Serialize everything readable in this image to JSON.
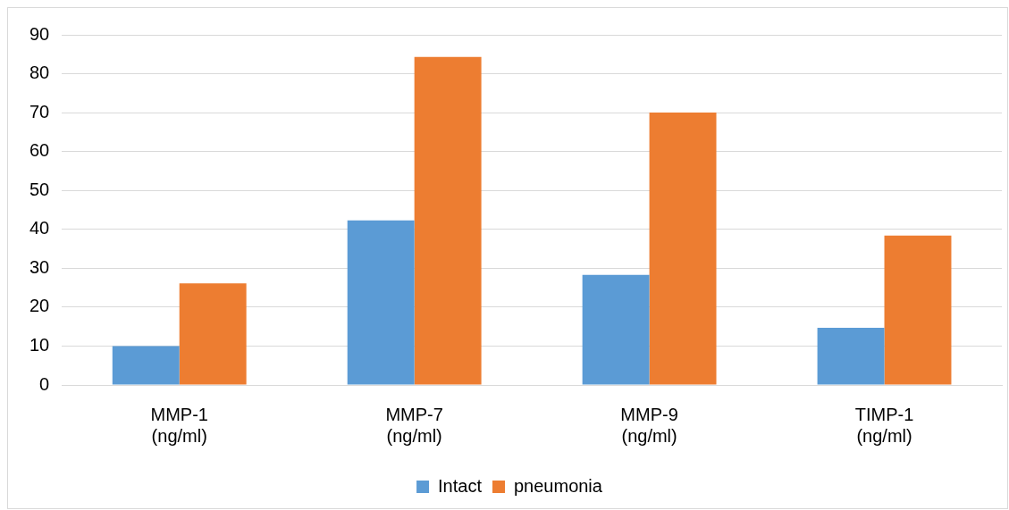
{
  "chart_data": {
    "type": "bar",
    "categories": [
      "MMP-1 (ng/ml)",
      "MMP-7 (ng/ml)",
      "MMP-9 (ng/ml)",
      "TIMP-1 (ng/ml)"
    ],
    "series": [
      {
        "name": "Intact",
        "color": "#5b9bd5",
        "values": [
          10,
          42.3,
          28.3,
          14.7
        ]
      },
      {
        "name": "pneumonia",
        "color": "#ed7d31",
        "values": [
          26.1,
          84.3,
          70,
          38.4
        ]
      }
    ],
    "ylim": [
      0,
      90
    ],
    "yticks": [
      0,
      10,
      20,
      30,
      40,
      50,
      60,
      70,
      80,
      90
    ],
    "grid": "y",
    "legend": "bottom"
  }
}
